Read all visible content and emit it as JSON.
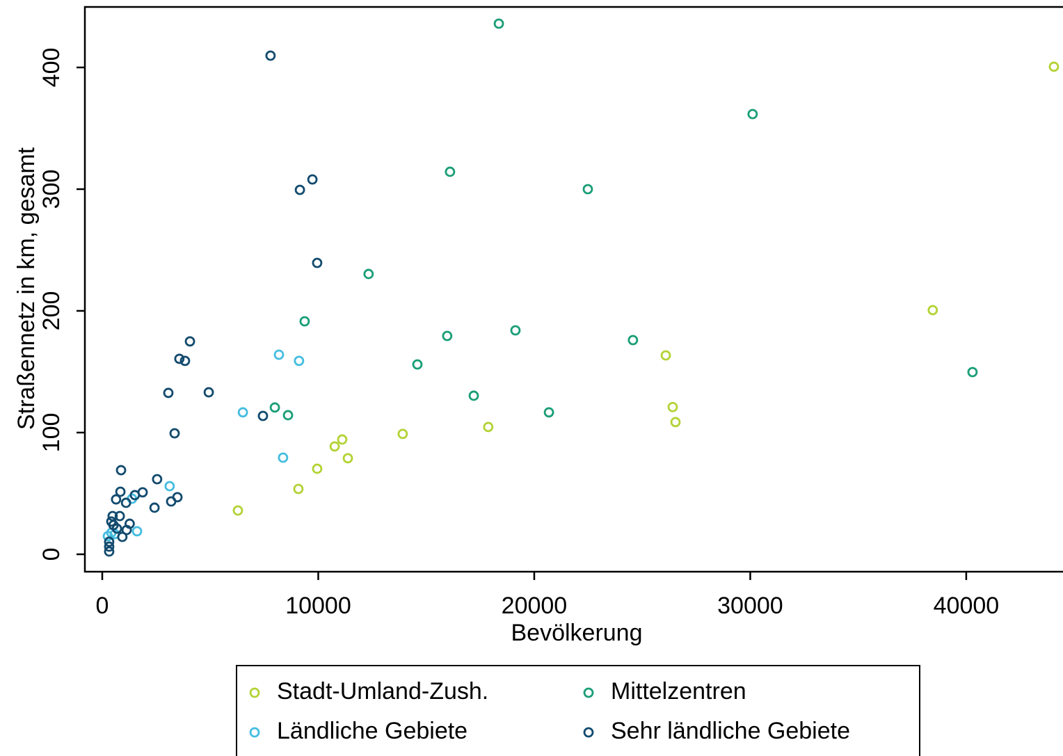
{
  "chart_data": {
    "type": "scatter",
    "x_label": "Bevölkerung",
    "y_label": "Straßennetz in km, gesamt",
    "xlim": [
      -805,
      44480
    ],
    "ylim": [
      -14.3,
      449.7
    ],
    "xticks": [
      0,
      10000,
      20000,
      30000,
      40000
    ],
    "yticks": [
      0,
      100,
      200,
      300,
      400
    ],
    "legend": "bottom",
    "series": [
      {
        "name": "Stadt-Umland-Zush.",
        "color": "#b3d335",
        "x": [
          44060,
          38450,
          26090,
          26410,
          26540,
          17870,
          13910,
          11110,
          10760,
          11370,
          9950,
          9080,
          6280
        ],
        "values": [
          400.6,
          200.6,
          163.4,
          121,
          108.6,
          104.6,
          98.9,
          94.3,
          88.6,
          78.9,
          70.3,
          53.7,
          36
        ]
      },
      {
        "name": "Mittelzentren",
        "color": "#1a9e77",
        "x": [
          18360,
          30110,
          16100,
          22480,
          12330,
          9370,
          19130,
          15970,
          24570,
          14590,
          40290,
          17200,
          7990,
          8600,
          20680
        ],
        "values": [
          436,
          361.7,
          314.3,
          300,
          230.3,
          191.4,
          184,
          179.4,
          176,
          156,
          149.7,
          130.3,
          120.6,
          114.3,
          116.6
        ]
      },
      {
        "name": "Ländliche Gebiete",
        "color": "#45bde0",
        "x": [
          8180,
          9110,
          6510,
          8370,
          3120,
          1380,
          1610,
          420,
          580,
          260
        ],
        "values": [
          164,
          158.9,
          116.6,
          79.4,
          56,
          45.7,
          18.9,
          17.7,
          16.6,
          14.9
        ]
      },
      {
        "name": "Sehr ländliche Gebiete",
        "color": "#124a6e",
        "x": [
          7790,
          9730,
          9150,
          9950,
          4060,
          3570,
          3830,
          3060,
          4930,
          7440,
          3350,
          870,
          2540,
          1870,
          1510,
          840,
          3480,
          3190,
          640,
          2420,
          1100,
          1270,
          810,
          480,
          420,
          680,
          930,
          320,
          320,
          320,
          520,
          1130
        ],
        "values": [
          409.7,
          308,
          299.4,
          239.4,
          174.9,
          160.6,
          158.9,
          132.6,
          133.1,
          113.7,
          99.4,
          69.1,
          61.7,
          50.9,
          48.6,
          51.4,
          46.9,
          43.4,
          45.1,
          38.3,
          42.3,
          25.1,
          31.4,
          31.4,
          26.9,
          21.1,
          14.3,
          10.3,
          6.3,
          2.3,
          24,
          20
        ]
      }
    ]
  }
}
